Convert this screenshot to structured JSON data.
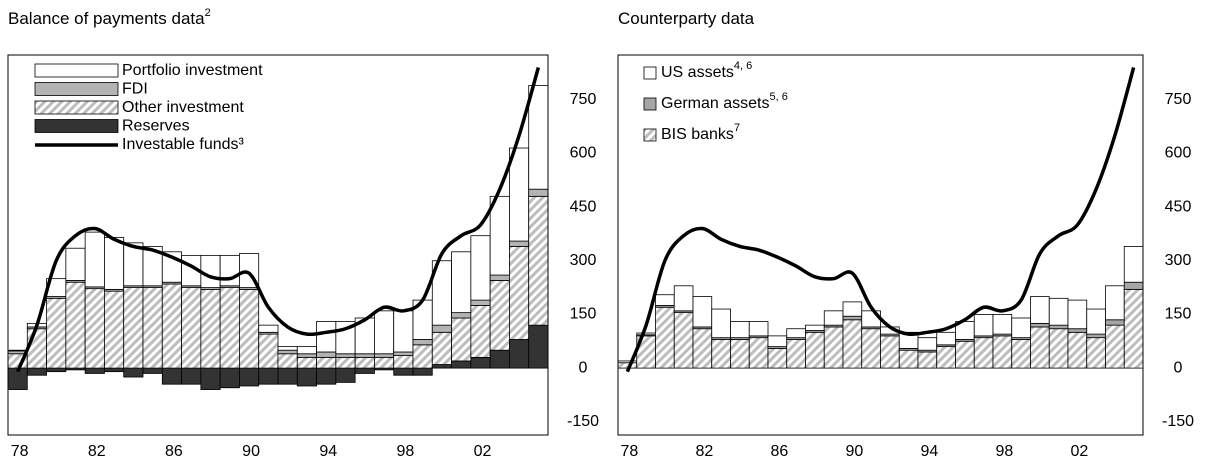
{
  "chart_data": [
    {
      "type": "bar",
      "stacked": true,
      "title": "Balance of payments data",
      "title_note": "2",
      "categories": [
        "78",
        null,
        null,
        null,
        "82",
        null,
        null,
        null,
        "86",
        null,
        null,
        null,
        "90",
        null,
        null,
        null,
        "94",
        null,
        null,
        null,
        "98",
        null,
        null,
        null,
        "02",
        null,
        null,
        null
      ],
      "series": [
        {
          "name": "Portfolio investment",
          "color": "#ffffff",
          "values": [
            2,
            10,
            50,
            90,
            153,
            145,
            120,
            110,
            85,
            85,
            90,
            85,
            95,
            20,
            10,
            20,
            85,
            90,
            100,
            120,
            115,
            110,
            180,
            170,
            180,
            220,
            260,
            290
          ]
        },
        {
          "name": "FDI",
          "color": "#b3b3b3",
          "values": [
            8,
            5,
            5,
            5,
            5,
            5,
            5,
            5,
            5,
            5,
            5,
            5,
            5,
            5,
            10,
            10,
            15,
            10,
            10,
            10,
            10,
            15,
            20,
            15,
            15,
            15,
            15,
            20
          ]
        },
        {
          "name": "Other investment",
          "color": "#bdbdbd",
          "pattern": "hatch",
          "values": [
            40,
            110,
            195,
            240,
            222,
            215,
            225,
            225,
            235,
            225,
            220,
            225,
            220,
            95,
            40,
            30,
            30,
            30,
            30,
            30,
            35,
            65,
            90,
            120,
            145,
            195,
            260,
            360
          ]
        },
        {
          "name": "Reserves",
          "color": "#333333",
          "values": [
            -60,
            -20,
            -10,
            -5,
            -15,
            -10,
            -25,
            -15,
            -45,
            -45,
            -60,
            -55,
            -50,
            -45,
            -45,
            -50,
            -45,
            -40,
            -15,
            -5,
            -20,
            -20,
            10,
            20,
            30,
            50,
            80,
            120
          ]
        },
        {
          "name": "Investable funds³",
          "type": "line",
          "color": "#000000",
          "values": [
            -10,
            120,
            300,
            370,
            390,
            360,
            340,
            330,
            310,
            285,
            255,
            250,
            265,
            170,
            115,
            95,
            100,
            110,
            135,
            170,
            160,
            190,
            320,
            370,
            400,
            500,
            650,
            840
          ]
        }
      ],
      "legend": "upper left",
      "ylim": [
        -187,
        875
      ],
      "yticks": [
        -150,
        0,
        150,
        300,
        450,
        600,
        750
      ]
    },
    {
      "type": "bar",
      "stacked": true,
      "title": "Counterparty data",
      "categories": [
        "78",
        null,
        null,
        null,
        "82",
        null,
        null,
        null,
        "86",
        null,
        null,
        null,
        "90",
        null,
        null,
        null,
        "94",
        null,
        null,
        null,
        "98",
        null,
        null,
        null,
        "02",
        null,
        null,
        null
      ],
      "series": [
        {
          "name": "US assets",
          "note": "4, 6",
          "color": "#ffffff",
          "values": [
            5,
            5,
            30,
            70,
            85,
            80,
            45,
            40,
            30,
            25,
            15,
            40,
            40,
            45,
            20,
            45,
            35,
            35,
            50,
            60,
            55,
            55,
            75,
            75,
            80,
            70,
            95,
            100
          ]
        },
        {
          "name": "German assets",
          "note": "5, 6",
          "color": "#a6a6a6",
          "values": [
            0,
            3,
            5,
            5,
            5,
            5,
            5,
            5,
            5,
            5,
            5,
            5,
            10,
            5,
            5,
            5,
            5,
            5,
            5,
            5,
            5,
            5,
            10,
            10,
            10,
            10,
            15,
            20
          ]
        },
        {
          "name": "BIS banks",
          "note": "7",
          "color": "#bdbdbd",
          "pattern": "hatch",
          "values": [
            15,
            90,
            170,
            155,
            110,
            80,
            80,
            85,
            55,
            80,
            100,
            115,
            135,
            110,
            90,
            50,
            45,
            60,
            75,
            85,
            90,
            80,
            115,
            110,
            100,
            85,
            120,
            220
          ]
        },
        {
          "type": "line",
          "color": "#000000",
          "values": [
            -10,
            120,
            300,
            370,
            390,
            360,
            340,
            330,
            310,
            285,
            255,
            250,
            265,
            170,
            115,
            95,
            100,
            110,
            135,
            170,
            160,
            190,
            320,
            370,
            400,
            500,
            650,
            840
          ]
        }
      ],
      "legend": "upper left",
      "ylim": [
        -187,
        875
      ],
      "yticks": [
        -150,
        0,
        150,
        300,
        450,
        600,
        750
      ]
    }
  ]
}
